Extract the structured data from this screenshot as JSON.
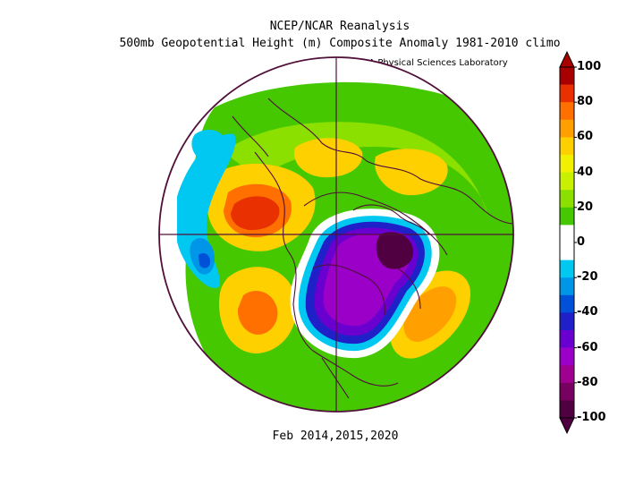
{
  "title_line1": "NCEP/NCAR Reanalysis",
  "title_line2": "500mb Geopotential Height (m) Composite Anomaly 1981-2010 climo",
  "credit": "NOAA Physical Sciences Laboratory",
  "caption": "Feb 2014,2015,2020",
  "colorbar": {
    "ticks": [
      "100",
      "80",
      "60",
      "40",
      "20",
      "0",
      "-20",
      "-40",
      "-60",
      "-80",
      "-100"
    ],
    "colors": [
      "#a80000",
      "#e83000",
      "#ff7000",
      "#ffa000",
      "#ffd000",
      "#f0f000",
      "#c8f000",
      "#8ce000",
      "#46c800",
      "#ffffff",
      "#ffffff",
      "#00c8f0",
      "#0096e8",
      "#0050d8",
      "#2020c8",
      "#6a00d0",
      "#9a00c8",
      "#a00090",
      "#780060",
      "#500040"
    ]
  }
}
